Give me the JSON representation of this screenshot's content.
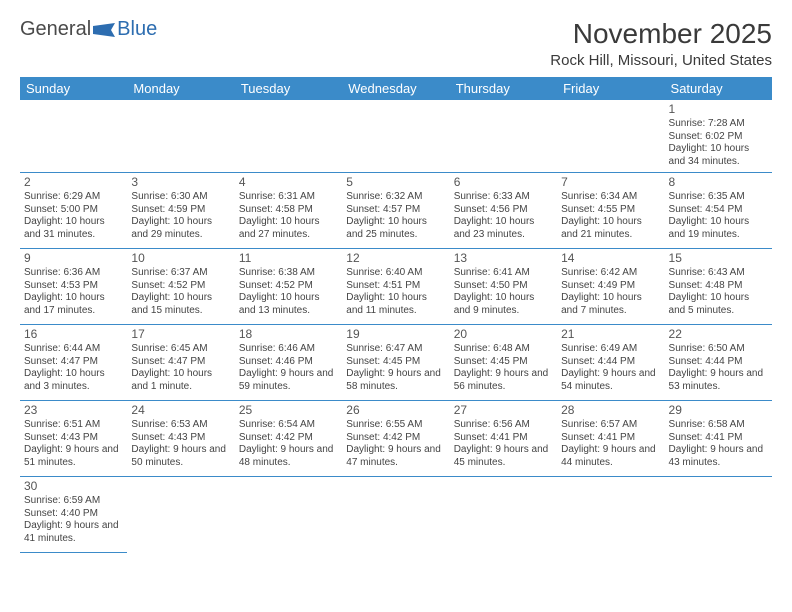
{
  "logo": {
    "general": "General",
    "blue": "Blue"
  },
  "title": "November 2025",
  "location": "Rock Hill, Missouri, United States",
  "colors": {
    "header_bg": "#3b8bc9",
    "header_text": "#ffffff",
    "cell_border": "#3b8bc9",
    "text": "#444444",
    "daynum": "#555555",
    "background": "#ffffff",
    "logo_blue": "#2d6db0",
    "logo_gray": "#4a4a4a"
  },
  "daynames": [
    "Sunday",
    "Monday",
    "Tuesday",
    "Wednesday",
    "Thursday",
    "Friday",
    "Saturday"
  ],
  "weeks": [
    [
      null,
      null,
      null,
      null,
      null,
      null,
      {
        "n": "1",
        "sr": "Sunrise: 7:28 AM",
        "ss": "Sunset: 6:02 PM",
        "dl": "Daylight: 10 hours and 34 minutes."
      }
    ],
    [
      {
        "n": "2",
        "sr": "Sunrise: 6:29 AM",
        "ss": "Sunset: 5:00 PM",
        "dl": "Daylight: 10 hours and 31 minutes."
      },
      {
        "n": "3",
        "sr": "Sunrise: 6:30 AM",
        "ss": "Sunset: 4:59 PM",
        "dl": "Daylight: 10 hours and 29 minutes."
      },
      {
        "n": "4",
        "sr": "Sunrise: 6:31 AM",
        "ss": "Sunset: 4:58 PM",
        "dl": "Daylight: 10 hours and 27 minutes."
      },
      {
        "n": "5",
        "sr": "Sunrise: 6:32 AM",
        "ss": "Sunset: 4:57 PM",
        "dl": "Daylight: 10 hours and 25 minutes."
      },
      {
        "n": "6",
        "sr": "Sunrise: 6:33 AM",
        "ss": "Sunset: 4:56 PM",
        "dl": "Daylight: 10 hours and 23 minutes."
      },
      {
        "n": "7",
        "sr": "Sunrise: 6:34 AM",
        "ss": "Sunset: 4:55 PM",
        "dl": "Daylight: 10 hours and 21 minutes."
      },
      {
        "n": "8",
        "sr": "Sunrise: 6:35 AM",
        "ss": "Sunset: 4:54 PM",
        "dl": "Daylight: 10 hours and 19 minutes."
      }
    ],
    [
      {
        "n": "9",
        "sr": "Sunrise: 6:36 AM",
        "ss": "Sunset: 4:53 PM",
        "dl": "Daylight: 10 hours and 17 minutes."
      },
      {
        "n": "10",
        "sr": "Sunrise: 6:37 AM",
        "ss": "Sunset: 4:52 PM",
        "dl": "Daylight: 10 hours and 15 minutes."
      },
      {
        "n": "11",
        "sr": "Sunrise: 6:38 AM",
        "ss": "Sunset: 4:52 PM",
        "dl": "Daylight: 10 hours and 13 minutes."
      },
      {
        "n": "12",
        "sr": "Sunrise: 6:40 AM",
        "ss": "Sunset: 4:51 PM",
        "dl": "Daylight: 10 hours and 11 minutes."
      },
      {
        "n": "13",
        "sr": "Sunrise: 6:41 AM",
        "ss": "Sunset: 4:50 PM",
        "dl": "Daylight: 10 hours and 9 minutes."
      },
      {
        "n": "14",
        "sr": "Sunrise: 6:42 AM",
        "ss": "Sunset: 4:49 PM",
        "dl": "Daylight: 10 hours and 7 minutes."
      },
      {
        "n": "15",
        "sr": "Sunrise: 6:43 AM",
        "ss": "Sunset: 4:48 PM",
        "dl": "Daylight: 10 hours and 5 minutes."
      }
    ],
    [
      {
        "n": "16",
        "sr": "Sunrise: 6:44 AM",
        "ss": "Sunset: 4:47 PM",
        "dl": "Daylight: 10 hours and 3 minutes."
      },
      {
        "n": "17",
        "sr": "Sunrise: 6:45 AM",
        "ss": "Sunset: 4:47 PM",
        "dl": "Daylight: 10 hours and 1 minute."
      },
      {
        "n": "18",
        "sr": "Sunrise: 6:46 AM",
        "ss": "Sunset: 4:46 PM",
        "dl": "Daylight: 9 hours and 59 minutes."
      },
      {
        "n": "19",
        "sr": "Sunrise: 6:47 AM",
        "ss": "Sunset: 4:45 PM",
        "dl": "Daylight: 9 hours and 58 minutes."
      },
      {
        "n": "20",
        "sr": "Sunrise: 6:48 AM",
        "ss": "Sunset: 4:45 PM",
        "dl": "Daylight: 9 hours and 56 minutes."
      },
      {
        "n": "21",
        "sr": "Sunrise: 6:49 AM",
        "ss": "Sunset: 4:44 PM",
        "dl": "Daylight: 9 hours and 54 minutes."
      },
      {
        "n": "22",
        "sr": "Sunrise: 6:50 AM",
        "ss": "Sunset: 4:44 PM",
        "dl": "Daylight: 9 hours and 53 minutes."
      }
    ],
    [
      {
        "n": "23",
        "sr": "Sunrise: 6:51 AM",
        "ss": "Sunset: 4:43 PM",
        "dl": "Daylight: 9 hours and 51 minutes."
      },
      {
        "n": "24",
        "sr": "Sunrise: 6:53 AM",
        "ss": "Sunset: 4:43 PM",
        "dl": "Daylight: 9 hours and 50 minutes."
      },
      {
        "n": "25",
        "sr": "Sunrise: 6:54 AM",
        "ss": "Sunset: 4:42 PM",
        "dl": "Daylight: 9 hours and 48 minutes."
      },
      {
        "n": "26",
        "sr": "Sunrise: 6:55 AM",
        "ss": "Sunset: 4:42 PM",
        "dl": "Daylight: 9 hours and 47 minutes."
      },
      {
        "n": "27",
        "sr": "Sunrise: 6:56 AM",
        "ss": "Sunset: 4:41 PM",
        "dl": "Daylight: 9 hours and 45 minutes."
      },
      {
        "n": "28",
        "sr": "Sunrise: 6:57 AM",
        "ss": "Sunset: 4:41 PM",
        "dl": "Daylight: 9 hours and 44 minutes."
      },
      {
        "n": "29",
        "sr": "Sunrise: 6:58 AM",
        "ss": "Sunset: 4:41 PM",
        "dl": "Daylight: 9 hours and 43 minutes."
      }
    ],
    [
      {
        "n": "30",
        "sr": "Sunrise: 6:59 AM",
        "ss": "Sunset: 4:40 PM",
        "dl": "Daylight: 9 hours and 41 minutes."
      },
      null,
      null,
      null,
      null,
      null,
      null
    ]
  ]
}
